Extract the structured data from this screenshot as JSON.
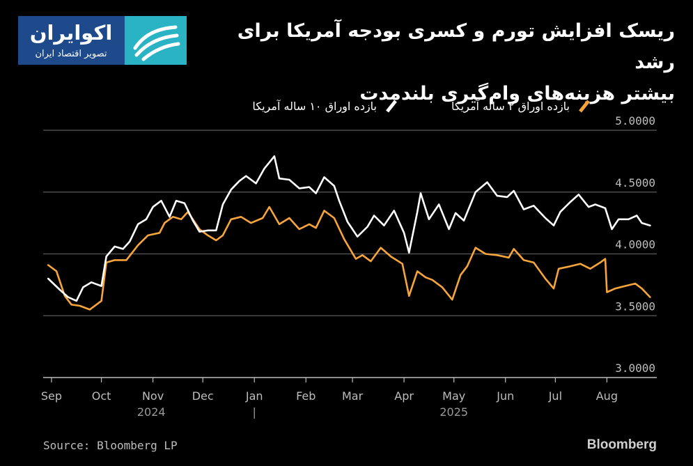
{
  "logo": {
    "name": "اکوایران",
    "tagline": "تصویر اقتصاد ایران",
    "bg_color": "#1e4a8c",
    "mark_color": "#2ab3c5"
  },
  "header": {
    "title_line1": "ریسک افزایش تورم و کسری بودجه آمریکا برای رشد",
    "title_line2": "بیشتر هزینه‌های وام‌گیری بلندمدت"
  },
  "footer": {
    "source": "Source: Bloomberg LP",
    "brand": "Bloomberg"
  },
  "chart_data": {
    "type": "line",
    "title": "",
    "xlabel": "",
    "ylabel": "",
    "ylim": [
      3.0,
      5.0
    ],
    "xlim": [
      "2024-08-27",
      "2025-08-31"
    ],
    "y_ticks": [
      "5.0000",
      "4.5000",
      "4.0000",
      "3.5000",
      "3.0000"
    ],
    "x_ticks": [
      {
        "label": "Sep",
        "date": "2024-09-01"
      },
      {
        "label": "Oct",
        "date": "2024-10-01"
      },
      {
        "label": "Nov",
        "date": "2024-11-01"
      },
      {
        "label": "Dec",
        "date": "2024-12-01"
      },
      {
        "label": "Jan",
        "date": "2025-01-01"
      },
      {
        "label": "Feb",
        "date": "2025-02-01"
      },
      {
        "label": "Mar",
        "date": "2025-03-01"
      },
      {
        "label": "Apr",
        "date": "2025-04-01"
      },
      {
        "label": "May",
        "date": "2025-05-01"
      },
      {
        "label": "Jun",
        "date": "2025-06-01"
      },
      {
        "label": "Jul",
        "date": "2025-07-01"
      },
      {
        "label": "Aug",
        "date": "2025-08-01"
      }
    ],
    "year_labels": [
      {
        "label": "2024",
        "date": "2024-10-31"
      },
      {
        "label": "2025",
        "date": "2025-05-01"
      }
    ],
    "year_separator": "|",
    "grid": true,
    "legend_position": "top",
    "series": [
      {
        "name": "بازده اوراق ۱۰ ساله آمریکا",
        "color": "#ffffff",
        "points": [
          [
            "2024-08-30",
            3.8
          ],
          [
            "2024-09-06",
            3.71
          ],
          [
            "2024-09-11",
            3.65
          ],
          [
            "2024-09-16",
            3.62
          ],
          [
            "2024-09-20",
            3.73
          ],
          [
            "2024-09-25",
            3.77
          ],
          [
            "2024-10-01",
            3.74
          ],
          [
            "2024-10-04",
            3.98
          ],
          [
            "2024-10-09",
            4.06
          ],
          [
            "2024-10-14",
            4.04
          ],
          [
            "2024-10-18",
            4.1
          ],
          [
            "2024-10-23",
            4.24
          ],
          [
            "2024-10-28",
            4.28
          ],
          [
            "2024-11-01",
            4.38
          ],
          [
            "2024-11-06",
            4.43
          ],
          [
            "2024-11-11",
            4.3
          ],
          [
            "2024-11-15",
            4.43
          ],
          [
            "2024-11-20",
            4.41
          ],
          [
            "2024-11-25",
            4.27
          ],
          [
            "2024-11-29",
            4.18
          ],
          [
            "2024-12-04",
            4.19
          ],
          [
            "2024-12-09",
            4.19
          ],
          [
            "2024-12-13",
            4.4
          ],
          [
            "2024-12-18",
            4.52
          ],
          [
            "2024-12-23",
            4.59
          ],
          [
            "2024-12-27",
            4.63
          ],
          [
            "2025-01-02",
            4.57
          ],
          [
            "2025-01-07",
            4.69
          ],
          [
            "2025-01-13",
            4.79
          ],
          [
            "2025-01-16",
            4.61
          ],
          [
            "2025-01-22",
            4.6
          ],
          [
            "2025-01-28",
            4.53
          ],
          [
            "2025-02-03",
            4.54
          ],
          [
            "2025-02-07",
            4.49
          ],
          [
            "2025-02-12",
            4.62
          ],
          [
            "2025-02-18",
            4.55
          ],
          [
            "2025-02-21",
            4.43
          ],
          [
            "2025-02-26",
            4.26
          ],
          [
            "2025-03-04",
            4.14
          ],
          [
            "2025-03-10",
            4.22
          ],
          [
            "2025-03-14",
            4.31
          ],
          [
            "2025-03-20",
            4.23
          ],
          [
            "2025-03-26",
            4.35
          ],
          [
            "2025-04-01",
            4.17
          ],
          [
            "2025-04-04",
            4.01
          ],
          [
            "2025-04-09",
            4.34
          ],
          [
            "2025-04-11",
            4.49
          ],
          [
            "2025-04-16",
            4.28
          ],
          [
            "2025-04-22",
            4.4
          ],
          [
            "2025-04-28",
            4.2
          ],
          [
            "2025-05-02",
            4.33
          ],
          [
            "2025-05-07",
            4.27
          ],
          [
            "2025-05-14",
            4.5
          ],
          [
            "2025-05-21",
            4.58
          ],
          [
            "2025-05-27",
            4.47
          ],
          [
            "2025-06-02",
            4.46
          ],
          [
            "2025-06-06",
            4.51
          ],
          [
            "2025-06-12",
            4.36
          ],
          [
            "2025-06-18",
            4.39
          ],
          [
            "2025-06-25",
            4.29
          ],
          [
            "2025-06-30",
            4.23
          ],
          [
            "2025-07-04",
            4.34
          ],
          [
            "2025-07-10",
            4.42
          ],
          [
            "2025-07-15",
            4.48
          ],
          [
            "2025-07-21",
            4.38
          ],
          [
            "2025-07-25",
            4.4
          ],
          [
            "2025-07-31",
            4.37
          ],
          [
            "2025-08-04",
            4.2
          ],
          [
            "2025-08-08",
            4.28
          ],
          [
            "2025-08-14",
            4.28
          ],
          [
            "2025-08-19",
            4.31
          ],
          [
            "2025-08-22",
            4.25
          ],
          [
            "2025-08-27",
            4.23
          ]
        ]
      },
      {
        "name": "بازده اوراق ۲ ساله آمریکا",
        "color": "#f7a53b",
        "points": [
          [
            "2024-08-30",
            3.91
          ],
          [
            "2024-09-04",
            3.86
          ],
          [
            "2024-09-09",
            3.66
          ],
          [
            "2024-09-13",
            3.59
          ],
          [
            "2024-09-18",
            3.58
          ],
          [
            "2024-09-24",
            3.55
          ],
          [
            "2024-10-01",
            3.62
          ],
          [
            "2024-10-04",
            3.93
          ],
          [
            "2024-10-09",
            3.95
          ],
          [
            "2024-10-16",
            3.95
          ],
          [
            "2024-10-23",
            4.07
          ],
          [
            "2024-10-29",
            4.15
          ],
          [
            "2024-11-05",
            4.17
          ],
          [
            "2024-11-08",
            4.25
          ],
          [
            "2024-11-13",
            4.3
          ],
          [
            "2024-11-18",
            4.28
          ],
          [
            "2024-11-22",
            4.34
          ],
          [
            "2024-11-29",
            4.2
          ],
          [
            "2024-12-04",
            4.15
          ],
          [
            "2024-12-09",
            4.11
          ],
          [
            "2024-12-13",
            4.15
          ],
          [
            "2024-12-18",
            4.28
          ],
          [
            "2024-12-24",
            4.3
          ],
          [
            "2024-12-30",
            4.25
          ],
          [
            "2025-01-06",
            4.29
          ],
          [
            "2025-01-10",
            4.38
          ],
          [
            "2025-01-16",
            4.24
          ],
          [
            "2025-01-22",
            4.29
          ],
          [
            "2025-01-28",
            4.2
          ],
          [
            "2025-02-03",
            4.24
          ],
          [
            "2025-02-07",
            4.21
          ],
          [
            "2025-02-12",
            4.35
          ],
          [
            "2025-02-18",
            4.29
          ],
          [
            "2025-02-24",
            4.12
          ],
          [
            "2025-03-03",
            3.96
          ],
          [
            "2025-03-07",
            3.99
          ],
          [
            "2025-03-12",
            3.94
          ],
          [
            "2025-03-18",
            4.05
          ],
          [
            "2025-03-24",
            3.98
          ],
          [
            "2025-03-31",
            3.92
          ],
          [
            "2025-04-04",
            3.66
          ],
          [
            "2025-04-09",
            3.86
          ],
          [
            "2025-04-14",
            3.81
          ],
          [
            "2025-04-18",
            3.79
          ],
          [
            "2025-04-24",
            3.73
          ],
          [
            "2025-04-30",
            3.63
          ],
          [
            "2025-05-05",
            3.83
          ],
          [
            "2025-05-09",
            3.9
          ],
          [
            "2025-05-14",
            4.05
          ],
          [
            "2025-05-20",
            4.0
          ],
          [
            "2025-05-27",
            3.99
          ],
          [
            "2025-06-03",
            3.97
          ],
          [
            "2025-06-06",
            4.04
          ],
          [
            "2025-06-12",
            3.95
          ],
          [
            "2025-06-18",
            3.93
          ],
          [
            "2025-06-25",
            3.8
          ],
          [
            "2025-06-30",
            3.72
          ],
          [
            "2025-07-03",
            3.88
          ],
          [
            "2025-07-10",
            3.9
          ],
          [
            "2025-07-16",
            3.92
          ],
          [
            "2025-07-22",
            3.88
          ],
          [
            "2025-07-28",
            3.93
          ],
          [
            "2025-07-31",
            3.96
          ],
          [
            "2025-08-01",
            3.69
          ],
          [
            "2025-08-06",
            3.72
          ],
          [
            "2025-08-12",
            3.74
          ],
          [
            "2025-08-18",
            3.76
          ],
          [
            "2025-08-22",
            3.72
          ],
          [
            "2025-08-27",
            3.65
          ]
        ]
      }
    ]
  }
}
